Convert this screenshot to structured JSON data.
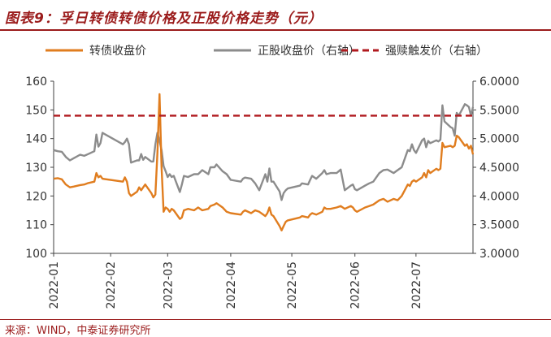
{
  "header": {
    "title": "图表9：孚日转债转债价格及正股价格走势（元）"
  },
  "footer": {
    "source": "来源：WIND，中泰证券研究所"
  },
  "colors": {
    "bond": "#e07d1f",
    "stock": "#8c8c8c",
    "trigger": "#b0191e",
    "title": "#9b1c1c"
  },
  "chart_data": {
    "type": "line",
    "legend": [
      "转债收盘价",
      "正股收盘价（右轴）",
      "强赎触发价（右轴）"
    ],
    "legend_position": "top",
    "grid": false,
    "x_ticks": [
      "2022-01",
      "2022-02",
      "2022-03",
      "2022-04",
      "2022-05",
      "2022-06",
      "2022-07"
    ],
    "y_left": {
      "ylim": [
        100,
        160
      ],
      "ticks": [
        "100",
        "110",
        "120",
        "130",
        "140",
        "150",
        "160"
      ]
    },
    "y_right": {
      "ylim": [
        3.0,
        6.0
      ],
      "ticks": [
        "3.0000",
        "3.5000",
        "4.0000",
        "4.5000",
        "5.0000",
        "5.5000",
        "6.0000"
      ]
    },
    "x_range": [
      "2022-01-04",
      "2022-07-29"
    ],
    "series": [
      {
        "name": "转债收盘价",
        "axis": "left",
        "points": [
          [
            "2022-01-04",
            126.0
          ],
          [
            "2022-01-06",
            126.2
          ],
          [
            "2022-01-08",
            125.8
          ],
          [
            "2022-01-10",
            124.0
          ],
          [
            "2022-01-12",
            123.0
          ],
          [
            "2022-01-14",
            123.3
          ],
          [
            "2022-01-17",
            123.8
          ],
          [
            "2022-01-19",
            124.0
          ],
          [
            "2022-01-21",
            124.5
          ],
          [
            "2022-01-24",
            125.0
          ],
          [
            "2022-01-25",
            128.0
          ],
          [
            "2022-01-26",
            126.5
          ],
          [
            "2022-01-27",
            127.0
          ],
          [
            "2022-01-28",
            126.0
          ],
          [
            "2022-02-07",
            125.0
          ],
          [
            "2022-02-08",
            126.5
          ],
          [
            "2022-02-09",
            125.0
          ],
          [
            "2022-02-10",
            121.0
          ],
          [
            "2022-02-11",
            120.0
          ],
          [
            "2022-02-14",
            121.5
          ],
          [
            "2022-02-15",
            123.0
          ],
          [
            "2022-02-16",
            122.0
          ],
          [
            "2022-02-17",
            123.0
          ],
          [
            "2022-02-18",
            124.0
          ],
          [
            "2022-02-21",
            121.0
          ],
          [
            "2022-02-22",
            119.5
          ],
          [
            "2022-02-23",
            120.5
          ],
          [
            "2022-02-24",
            135.0
          ],
          [
            "2022-02-25",
            155.5
          ],
          [
            "2022-02-26",
            130.0
          ],
          [
            "2022-02-27",
            114.5
          ],
          [
            "2022-02-28",
            116.0
          ],
          [
            "2022-03-01",
            115.5
          ],
          [
            "2022-03-02",
            114.5
          ],
          [
            "2022-03-03",
            115.5
          ],
          [
            "2022-03-04",
            115.0
          ],
          [
            "2022-03-07",
            112.0
          ],
          [
            "2022-03-08",
            112.5
          ],
          [
            "2022-03-09",
            115.0
          ],
          [
            "2022-03-11",
            115.5
          ],
          [
            "2022-03-14",
            115.0
          ],
          [
            "2022-03-16",
            116.0
          ],
          [
            "2022-03-18",
            115.0
          ],
          [
            "2022-03-21",
            115.5
          ],
          [
            "2022-03-22",
            116.5
          ],
          [
            "2022-03-24",
            117.0
          ],
          [
            "2022-03-25",
            117.5
          ],
          [
            "2022-03-28",
            116.0
          ],
          [
            "2022-03-30",
            114.5
          ],
          [
            "2022-04-01",
            114.0
          ],
          [
            "2022-04-06",
            113.5
          ],
          [
            "2022-04-07",
            114.5
          ],
          [
            "2022-04-08",
            115.0
          ],
          [
            "2022-04-11",
            114.0
          ],
          [
            "2022-04-13",
            115.0
          ],
          [
            "2022-04-15",
            114.5
          ],
          [
            "2022-04-18",
            113.0
          ],
          [
            "2022-04-19",
            114.0
          ],
          [
            "2022-04-20",
            116.0
          ],
          [
            "2022-04-21",
            113.5
          ],
          [
            "2022-04-22",
            113.0
          ],
          [
            "2022-04-25",
            109.5
          ],
          [
            "2022-04-26",
            108.0
          ],
          [
            "2022-04-27",
            109.5
          ],
          [
            "2022-04-28",
            111.0
          ],
          [
            "2022-04-29",
            111.5
          ],
          [
            "2022-05-05",
            112.5
          ],
          [
            "2022-05-06",
            113.0
          ],
          [
            "2022-05-09",
            112.5
          ],
          [
            "2022-05-10",
            113.5
          ],
          [
            "2022-05-11",
            114.0
          ],
          [
            "2022-05-13",
            113.5
          ],
          [
            "2022-05-16",
            114.5
          ],
          [
            "2022-05-17",
            116.0
          ],
          [
            "2022-05-18",
            115.5
          ],
          [
            "2022-05-20",
            115.5
          ],
          [
            "2022-05-23",
            116.0
          ],
          [
            "2022-05-25",
            116.5
          ],
          [
            "2022-05-27",
            115.5
          ],
          [
            "2022-05-30",
            116.5
          ],
          [
            "2022-05-31",
            116.0
          ],
          [
            "2022-06-01",
            115.0
          ],
          [
            "2022-06-02",
            114.5
          ],
          [
            "2022-06-06",
            116.0
          ],
          [
            "2022-06-08",
            116.5
          ],
          [
            "2022-06-10",
            117.0
          ],
          [
            "2022-06-13",
            118.5
          ],
          [
            "2022-06-15",
            119.0
          ],
          [
            "2022-06-17",
            118.0
          ],
          [
            "2022-06-20",
            119.0
          ],
          [
            "2022-06-22",
            118.5
          ],
          [
            "2022-06-24",
            120.0
          ],
          [
            "2022-06-27",
            124.0
          ],
          [
            "2022-06-28",
            123.5
          ],
          [
            "2022-06-29",
            125.0
          ],
          [
            "2022-06-30",
            125.5
          ],
          [
            "2022-07-01",
            125.0
          ],
          [
            "2022-07-04",
            126.5
          ],
          [
            "2022-07-05",
            128.0
          ],
          [
            "2022-07-06",
            126.5
          ],
          [
            "2022-07-07",
            129.0
          ],
          [
            "2022-07-08",
            128.0
          ],
          [
            "2022-07-11",
            129.5
          ],
          [
            "2022-07-12",
            129.0
          ],
          [
            "2022-07-13",
            129.5
          ],
          [
            "2022-07-14",
            138.5
          ],
          [
            "2022-07-15",
            137.0
          ],
          [
            "2022-07-18",
            137.5
          ],
          [
            "2022-07-19",
            137.0
          ],
          [
            "2022-07-20",
            137.5
          ],
          [
            "2022-07-21",
            141.0
          ],
          [
            "2022-07-22",
            140.5
          ],
          [
            "2022-07-25",
            137.5
          ],
          [
            "2022-07-26",
            138.0
          ],
          [
            "2022-07-27",
            136.5
          ],
          [
            "2022-07-28",
            137.5
          ],
          [
            "2022-07-29",
            134.5
          ]
        ]
      },
      {
        "name": "正股收盘价（右轴）",
        "axis": "right",
        "points": [
          [
            "2022-01-04",
            4.8
          ],
          [
            "2022-01-06",
            4.78
          ],
          [
            "2022-01-08",
            4.77
          ],
          [
            "2022-01-10",
            4.68
          ],
          [
            "2022-01-12",
            4.62
          ],
          [
            "2022-01-14",
            4.66
          ],
          [
            "2022-01-17",
            4.72
          ],
          [
            "2022-01-19",
            4.7
          ],
          [
            "2022-01-21",
            4.73
          ],
          [
            "2022-01-24",
            4.78
          ],
          [
            "2022-01-25",
            5.07
          ],
          [
            "2022-01-26",
            4.86
          ],
          [
            "2022-01-27",
            4.92
          ],
          [
            "2022-01-28",
            5.1
          ],
          [
            "2022-02-07",
            4.9
          ],
          [
            "2022-02-08",
            4.94
          ],
          [
            "2022-02-09",
            5.0
          ],
          [
            "2022-02-10",
            4.9
          ],
          [
            "2022-02-11",
            4.58
          ],
          [
            "2022-02-14",
            4.62
          ],
          [
            "2022-02-15",
            4.62
          ],
          [
            "2022-02-16",
            4.73
          ],
          [
            "2022-02-17",
            4.63
          ],
          [
            "2022-02-18",
            4.68
          ],
          [
            "2022-02-21",
            4.6
          ],
          [
            "2022-02-22",
            4.6
          ],
          [
            "2022-02-23",
            4.9
          ],
          [
            "2022-02-24",
            5.1
          ],
          [
            "2022-02-25",
            4.96
          ],
          [
            "2022-02-26",
            4.8
          ],
          [
            "2022-02-27",
            4.52
          ],
          [
            "2022-02-28",
            4.43
          ],
          [
            "2022-03-01",
            4.33
          ],
          [
            "2022-03-02",
            4.38
          ],
          [
            "2022-03-03",
            4.33
          ],
          [
            "2022-03-04",
            4.35
          ],
          [
            "2022-03-07",
            4.07
          ],
          [
            "2022-03-08",
            4.2
          ],
          [
            "2022-03-09",
            4.35
          ],
          [
            "2022-03-11",
            4.33
          ],
          [
            "2022-03-14",
            4.38
          ],
          [
            "2022-03-16",
            4.38
          ],
          [
            "2022-03-18",
            4.45
          ],
          [
            "2022-03-21",
            4.38
          ],
          [
            "2022-03-22",
            4.5
          ],
          [
            "2022-03-24",
            4.5
          ],
          [
            "2022-03-25",
            4.55
          ],
          [
            "2022-03-28",
            4.43
          ],
          [
            "2022-03-30",
            4.38
          ],
          [
            "2022-04-01",
            4.28
          ],
          [
            "2022-04-06",
            4.25
          ],
          [
            "2022-04-07",
            4.3
          ],
          [
            "2022-04-08",
            4.32
          ],
          [
            "2022-04-11",
            4.3
          ],
          [
            "2022-04-13",
            4.22
          ],
          [
            "2022-04-15",
            4.1
          ],
          [
            "2022-04-18",
            4.38
          ],
          [
            "2022-04-19",
            4.25
          ],
          [
            "2022-04-20",
            4.48
          ],
          [
            "2022-04-21",
            4.25
          ],
          [
            "2022-04-22",
            4.25
          ],
          [
            "2022-04-25",
            4.08
          ],
          [
            "2022-04-26",
            3.93
          ],
          [
            "2022-04-27",
            4.05
          ],
          [
            "2022-04-28",
            4.1
          ],
          [
            "2022-04-29",
            4.13
          ],
          [
            "2022-05-05",
            4.18
          ],
          [
            "2022-05-06",
            4.22
          ],
          [
            "2022-05-09",
            4.2
          ],
          [
            "2022-05-10",
            4.28
          ],
          [
            "2022-05-11",
            4.35
          ],
          [
            "2022-05-13",
            4.3
          ],
          [
            "2022-05-16",
            4.4
          ],
          [
            "2022-05-17",
            4.45
          ],
          [
            "2022-05-18",
            4.38
          ],
          [
            "2022-05-20",
            4.4
          ],
          [
            "2022-05-23",
            4.4
          ],
          [
            "2022-05-25",
            4.46
          ],
          [
            "2022-05-27",
            4.1
          ],
          [
            "2022-05-30",
            4.18
          ],
          [
            "2022-05-31",
            4.2
          ],
          [
            "2022-06-01",
            4.12
          ],
          [
            "2022-06-02",
            4.1
          ],
          [
            "2022-06-06",
            4.18
          ],
          [
            "2022-06-08",
            4.22
          ],
          [
            "2022-06-10",
            4.25
          ],
          [
            "2022-06-13",
            4.4
          ],
          [
            "2022-06-15",
            4.45
          ],
          [
            "2022-06-17",
            4.46
          ],
          [
            "2022-06-20",
            4.4
          ],
          [
            "2022-06-22",
            4.45
          ],
          [
            "2022-06-24",
            4.5
          ],
          [
            "2022-06-27",
            4.8
          ],
          [
            "2022-06-28",
            4.78
          ],
          [
            "2022-06-29",
            4.9
          ],
          [
            "2022-06-30",
            4.8
          ],
          [
            "2022-07-01",
            4.75
          ],
          [
            "2022-07-04",
            4.97
          ],
          [
            "2022-07-05",
            5.0
          ],
          [
            "2022-07-06",
            4.85
          ],
          [
            "2022-07-07",
            4.96
          ],
          [
            "2022-07-08",
            4.92
          ],
          [
            "2022-07-11",
            4.97
          ],
          [
            "2022-07-12",
            4.95
          ],
          [
            "2022-07-13",
            4.98
          ],
          [
            "2022-07-14",
            5.58
          ],
          [
            "2022-07-15",
            5.3
          ],
          [
            "2022-07-18",
            5.2
          ],
          [
            "2022-07-19",
            5.18
          ],
          [
            "2022-07-20",
            5.05
          ],
          [
            "2022-07-21",
            5.45
          ],
          [
            "2022-07-22",
            5.4
          ],
          [
            "2022-07-25",
            5.6
          ],
          [
            "2022-07-26",
            5.58
          ],
          [
            "2022-07-27",
            5.55
          ],
          [
            "2022-07-28",
            5.4
          ],
          [
            "2022-07-29",
            5.55
          ]
        ]
      },
      {
        "name": "强赎触发价（右轴）",
        "axis": "right",
        "value": 5.4
      }
    ]
  }
}
